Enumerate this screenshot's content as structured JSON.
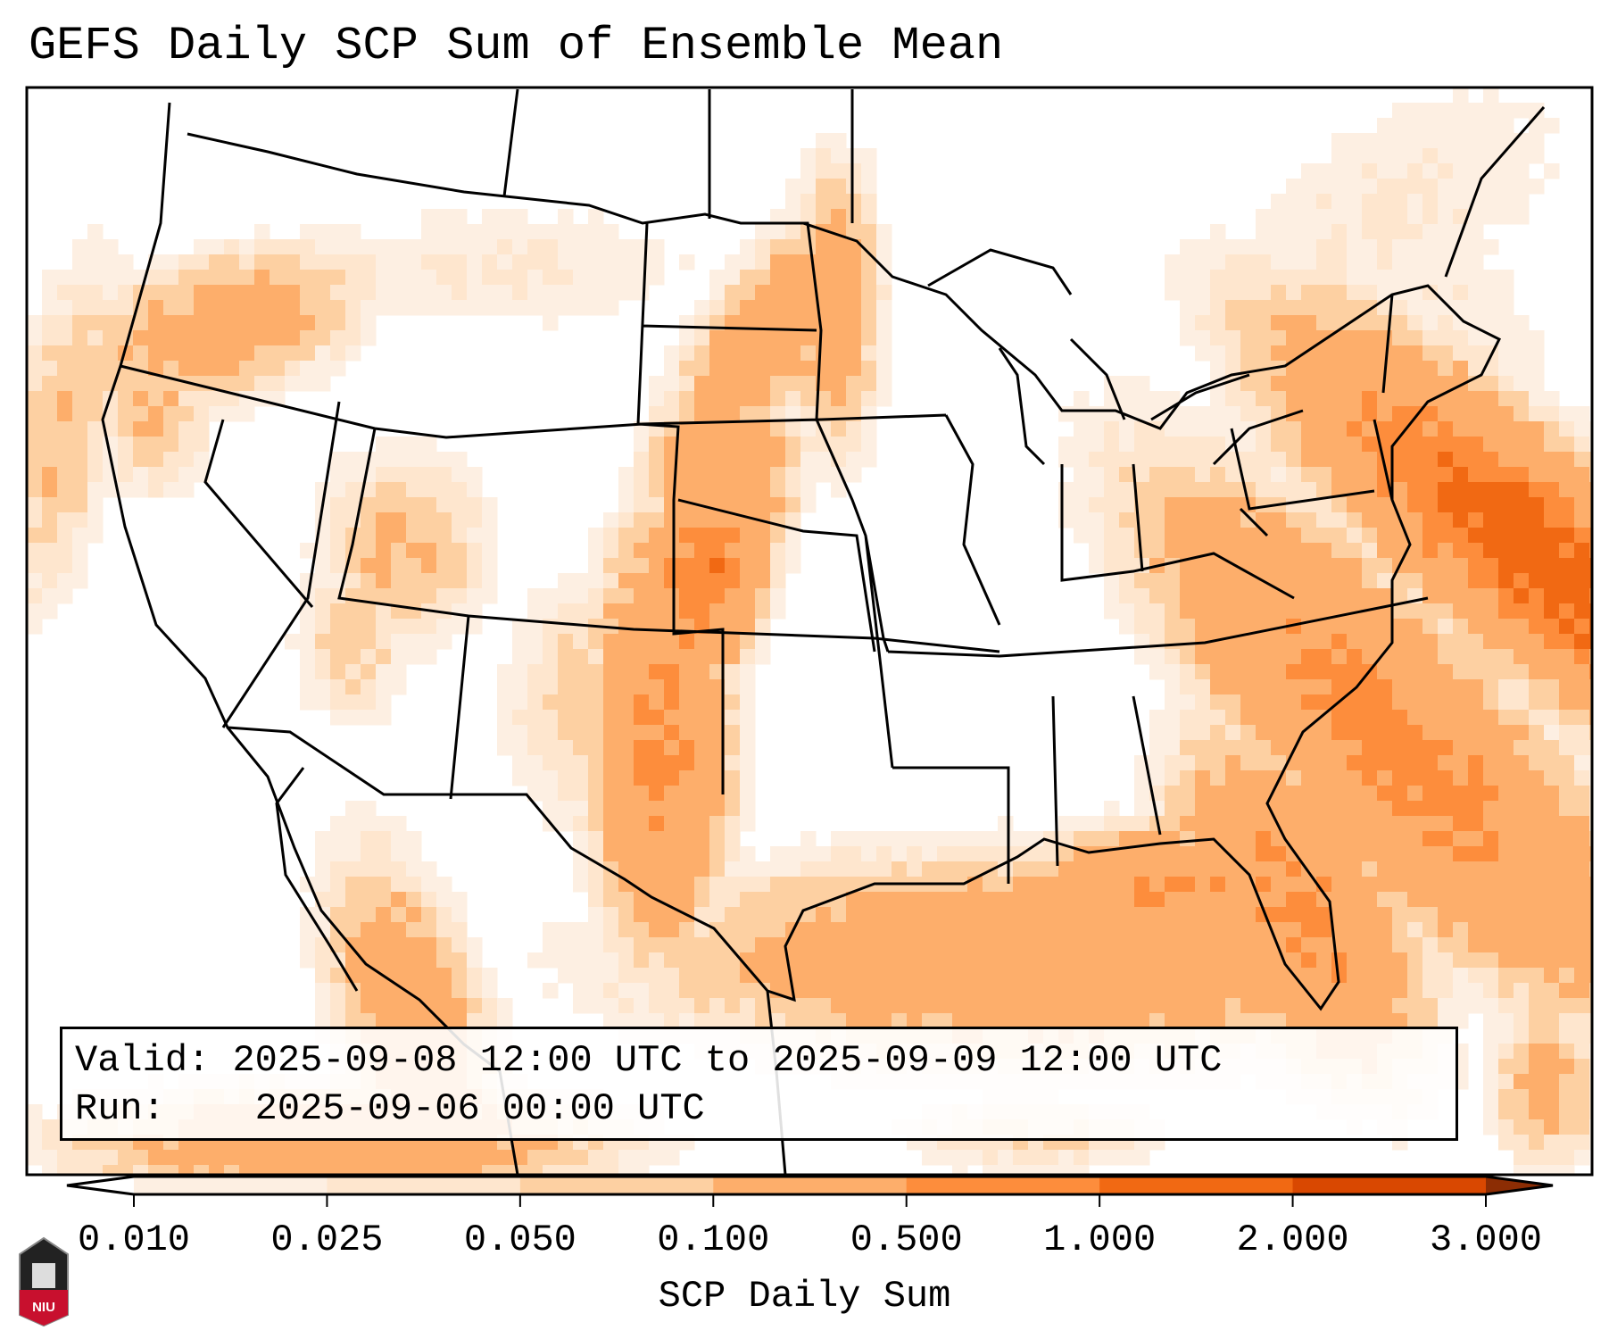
{
  "title": "GEFS Daily SCP Sum of Ensemble Mean",
  "info": {
    "valid_label": "Valid:",
    "valid_value": "2025-09-08 12:00 UTC to 2025-09-09 12:00 UTC",
    "run_label": "Run:",
    "run_value": "2025-09-06 00:00 UTC"
  },
  "logo_text": "NIU",
  "chart_data": {
    "type": "heatmap",
    "title": "GEFS Daily SCP Sum of Ensemble Mean",
    "colorbar": {
      "label": "SCP Daily Sum",
      "ticks": [
        "0.010",
        "0.025",
        "0.050",
        "0.100",
        "0.500",
        "1.000",
        "2.000",
        "3.000"
      ],
      "levels": [
        0.01,
        0.025,
        0.05,
        0.1,
        0.5,
        1.0,
        2.0,
        3.0
      ],
      "colors": [
        "#fdefe2",
        "#fee6ce",
        "#fdd0a2",
        "#fdae6b",
        "#fd8d3c",
        "#f16913",
        "#d94801"
      ],
      "extend_min_color": "#ffffff",
      "extend_max_color": "#8c2d04"
    },
    "region": "Continental United States",
    "features": [
      {
        "area": "Southeast US coast / western Atlantic",
        "range": "0.5-2.0"
      },
      {
        "area": "Gulf of Mexico",
        "range": "0.1-0.5"
      },
      {
        "area": "West Texas / Oklahoma / Kansas",
        "range": "0.5-1.0"
      },
      {
        "area": "Dakotas / Nebraska",
        "range": "0.1-0.5"
      },
      {
        "area": "Oregon / Pacific Northwest",
        "range": "0.05-0.5"
      },
      {
        "area": "Northwest Mexico / Gulf of California",
        "range": "0.1-0.5"
      }
    ]
  }
}
